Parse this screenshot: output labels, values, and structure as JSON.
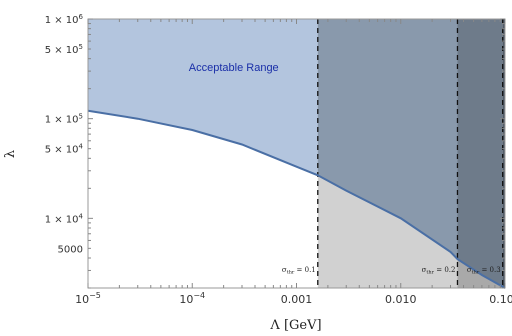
{
  "chart_data": {
    "type": "area",
    "x_scale": "log",
    "y_scale": "log",
    "xlim": [
      1e-05,
      0.1
    ],
    "ylim": [
      2000,
      1000000
    ],
    "xlabel": "Λ [GeV]",
    "ylabel": "λ",
    "x_ticks": [
      {
        "value": 1e-05,
        "label": "10",
        "sup": "−5"
      },
      {
        "value": 0.0001,
        "label": "10",
        "sup": "−4"
      },
      {
        "value": 0.001,
        "label": "0.001",
        "sup": ""
      },
      {
        "value": 0.01,
        "label": "0.010",
        "sup": ""
      },
      {
        "value": 0.1,
        "label": "0.100",
        "sup": ""
      }
    ],
    "y_ticks": [
      {
        "value": 1000000,
        "label": "1 × 10",
        "sup": "6"
      },
      {
        "value": 500000,
        "label": "5 × 10",
        "sup": "5"
      },
      {
        "value": 100000,
        "label": "1 × 10",
        "sup": "5"
      },
      {
        "value": 50000,
        "label": "5 × 10",
        "sup": "4"
      },
      {
        "value": 10000,
        "label": "1 × 10",
        "sup": "4"
      },
      {
        "value": 5000,
        "label": "5000",
        "sup": ""
      }
    ],
    "boundary_curve": {
      "x": [
        1e-05,
        3e-05,
        0.0001,
        0.0003,
        0.001,
        0.0016,
        0.003,
        0.01,
        0.03,
        0.035,
        0.06,
        0.1
      ],
      "y": [
        120000,
        100000,
        77000,
        55000,
        33000,
        27000,
        19000,
        10000,
        4600,
        3900,
        2700,
        2000
      ],
      "color": "#4a6fa5"
    },
    "regions": {
      "acceptable_fill": "#b3c5de",
      "below_fill": "#d1d1d1",
      "shaded_fills": [
        "#8999ac",
        "#6e7b8a",
        "#525c68"
      ]
    },
    "thresholds": [
      {
        "x": 0.0016,
        "label": "σ",
        "sub": "thr",
        "value": " = 0.1"
      },
      {
        "x": 0.035,
        "label": "σ",
        "sub": "thr",
        "value": " = 0.2"
      },
      {
        "x": 0.095,
        "label": "σ",
        "sub": "thr",
        "value": " = 0.3"
      }
    ],
    "annotation": {
      "text": "Acceptable Range",
      "x": 0.00025,
      "y": 300000,
      "color": "#1a2fa8"
    }
  }
}
